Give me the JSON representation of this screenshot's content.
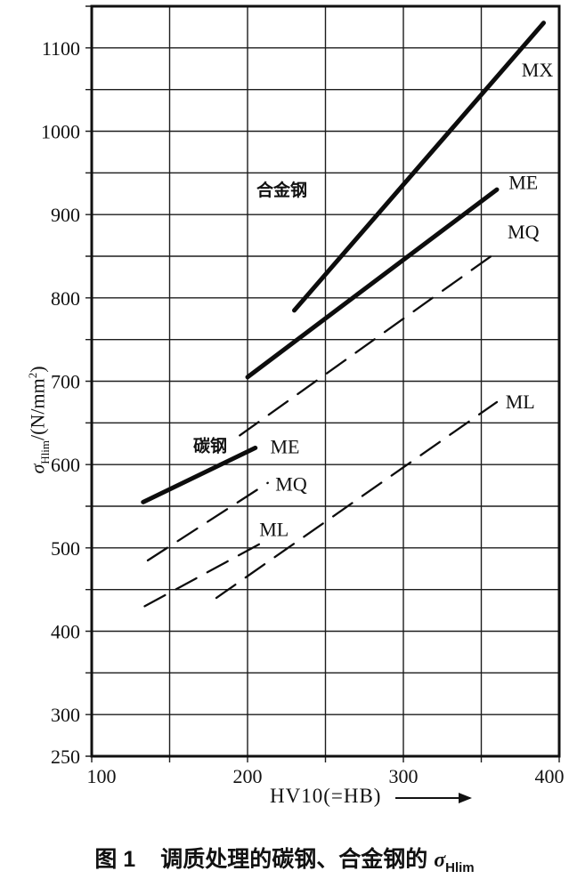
{
  "figure": {
    "caption_prefix": "图 1",
    "caption_body": "调质处理的碳钢、合金钢的",
    "caption_sigma": "σ",
    "caption_sigma_sub": "Hlim"
  },
  "chart_data": {
    "type": "line",
    "title": "",
    "xlabel": "HV10(=HB)",
    "ylabel": "σHlim/(N/mm²)",
    "ylabel_parts": {
      "sigma": "σ",
      "sub": "Hlim",
      "mid": "/(N/mm",
      "sup": "2",
      "end": ")"
    },
    "xlim": [
      100,
      400
    ],
    "ylim": [
      250,
      1150
    ],
    "x_gridline_step": 50,
    "y_gridline_step": 50,
    "x_tick_labels": [
      100,
      200,
      300,
      400
    ],
    "y_tick_labels": [
      1100,
      1000,
      900,
      800,
      700,
      600,
      500,
      400,
      300,
      250
    ],
    "grid": true,
    "legend_position": "none",
    "line_color": "#0d0d0d",
    "series": [
      {
        "name": "合金钢 MX",
        "steel": "alloy",
        "quality": "MX",
        "style": "solid",
        "width": "thick",
        "points": [
          [
            230,
            785
          ],
          [
            390,
            1130
          ]
        ]
      },
      {
        "name": "合金钢 ME",
        "steel": "alloy",
        "quality": "ME",
        "style": "solid",
        "width": "thick",
        "points": [
          [
            200,
            705
          ],
          [
            360,
            930
          ]
        ]
      },
      {
        "name": "合金钢 MQ",
        "steel": "alloy",
        "quality": "MQ",
        "style": "dashed",
        "width": "thin",
        "points": [
          [
            195,
            635
          ],
          [
            360,
            855
          ]
        ]
      },
      {
        "name": "合金钢 ML",
        "steel": "alloy",
        "quality": "ML",
        "style": "dashed",
        "width": "thin",
        "points": [
          [
            180,
            440
          ],
          [
            360,
            675
          ]
        ]
      },
      {
        "name": "碳钢 ME",
        "steel": "carbon",
        "quality": "ME",
        "style": "solid",
        "width": "thick",
        "points": [
          [
            133,
            555
          ],
          [
            205,
            620
          ]
        ]
      },
      {
        "name": "碳钢 MQ",
        "steel": "carbon",
        "quality": "MQ",
        "style": "dashed",
        "width": "thin",
        "points": [
          [
            136,
            485
          ],
          [
            213,
            578
          ]
        ]
      },
      {
        "name": "碳钢 ML",
        "steel": "carbon",
        "quality": "ML",
        "style": "dashed",
        "width": "thin",
        "points": [
          [
            134,
            430
          ],
          [
            213,
            510
          ]
        ]
      }
    ],
    "annotations": [
      {
        "text": "合金钢",
        "x": 222,
        "y": 930,
        "cjk": true
      },
      {
        "text": "碳钢",
        "x": 176,
        "y": 623,
        "cjk": true
      },
      {
        "text": "ME",
        "x": 224,
        "y": 622,
        "cjk": false
      },
      {
        "text": "MQ",
        "x": 228,
        "y": 577,
        "cjk": false
      },
      {
        "text": "ML",
        "x": 217,
        "y": 523,
        "cjk": false
      },
      {
        "text": "MX",
        "x": 386,
        "y": 1074,
        "cjk": false
      },
      {
        "text": "ME",
        "x": 377,
        "y": 939,
        "cjk": false
      },
      {
        "text": "MQ",
        "x": 377,
        "y": 880,
        "cjk": false
      },
      {
        "text": "ML",
        "x": 375,
        "y": 676,
        "cjk": false
      }
    ]
  }
}
